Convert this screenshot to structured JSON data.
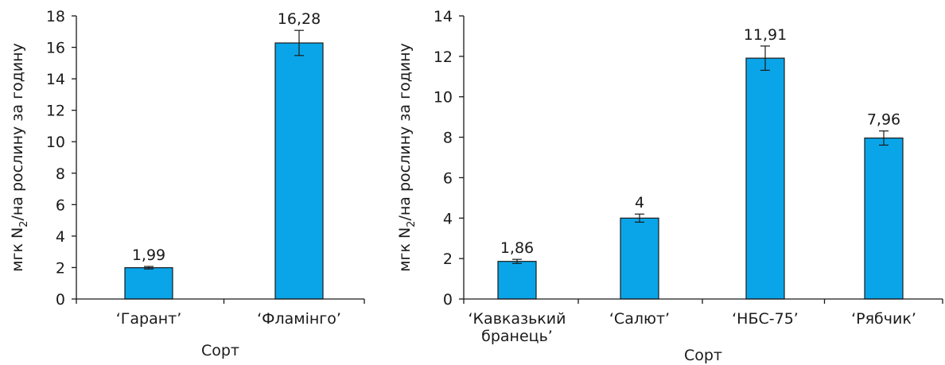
{
  "colors": {
    "bar": "#0aa5e8",
    "bar_stroke": "#1a1a1a",
    "axis": "#1a1a1a"
  },
  "chart_data": [
    {
      "type": "bar",
      "categories": [
        [
          "‘Гарант’"
        ],
        [
          "‘Фламінго’"
        ]
      ],
      "values": [
        1.99,
        16.28
      ],
      "data_labels": [
        "1,99",
        "16,28"
      ],
      "error": [
        0.08,
        0.8
      ],
      "ylim": [
        0,
        18
      ],
      "yticks": [
        0,
        2,
        4,
        6,
        8,
        10,
        12,
        14,
        16,
        18
      ],
      "xlabel": "Сорт",
      "ylabel": {
        "prefix": "мгк N",
        "sub": "2",
        "suffix": "/на рослину за годину"
      },
      "grid": false
    },
    {
      "type": "bar",
      "categories": [
        [
          "‘Кавказький",
          "бранець’"
        ],
        [
          "‘Салют’"
        ],
        [
          "‘НБС-75’"
        ],
        [
          "‘Рябчик’"
        ]
      ],
      "values": [
        1.86,
        4,
        11.91,
        7.96
      ],
      "data_labels": [
        "1,86",
        "4",
        "11,91",
        "7,96"
      ],
      "error": [
        0.1,
        0.2,
        0.6,
        0.35
      ],
      "ylim": [
        0,
        14
      ],
      "yticks": [
        0,
        2,
        4,
        6,
        8,
        10,
        12,
        14
      ],
      "xlabel": "Сорт",
      "ylabel": {
        "prefix": "мгк N",
        "sub": "2",
        "suffix": "/на рослину за годину"
      },
      "grid": false
    }
  ]
}
